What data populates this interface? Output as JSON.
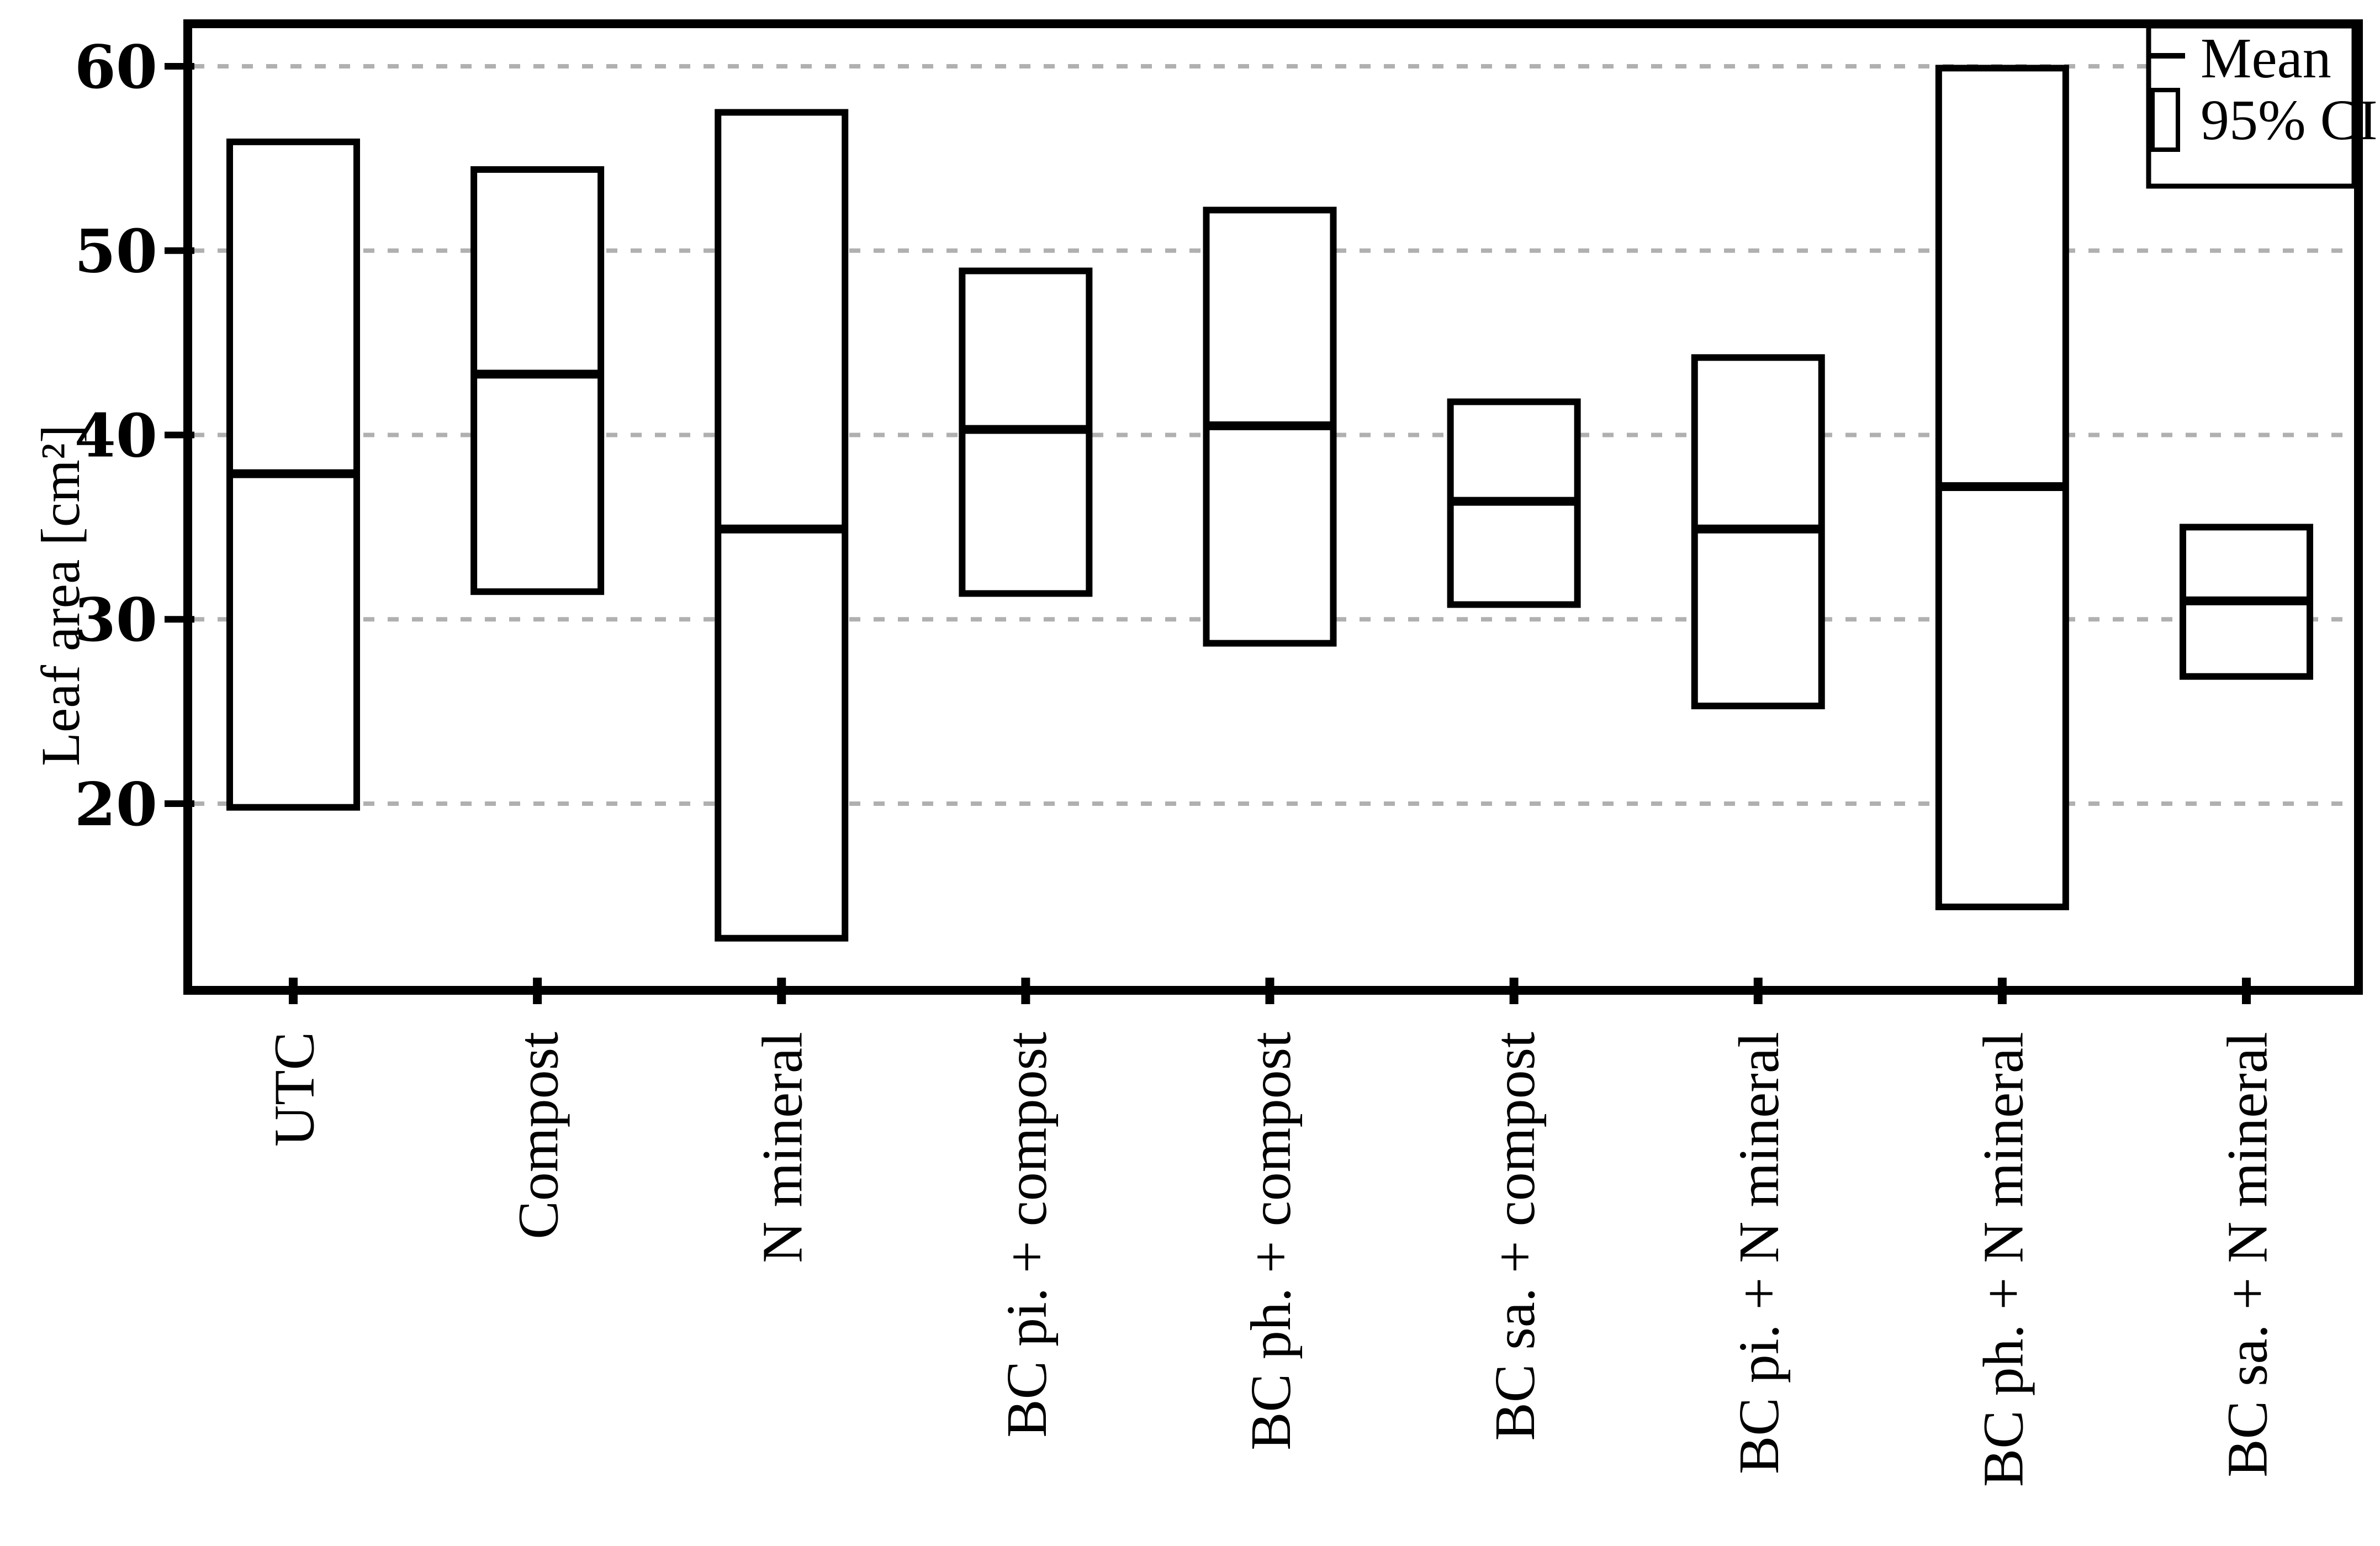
{
  "chart_data": {
    "type": "bar",
    "variant": "mean-with-95ci-boxes",
    "title": "",
    "xlabel": "",
    "ylabel": "Leaf area [cm²]",
    "yticks": [
      60,
      50,
      40,
      30,
      20
    ],
    "ylim": [
      9.8,
      62.6
    ],
    "grid": "horizontal dashed gray lines at each y tick",
    "categories": [
      "UTC",
      "Compost",
      "N mineral",
      "BC pi. + compost",
      "BC ph. + compost",
      "BC sa. + compost",
      "BC pi. + N mineral",
      "BC ph. + N mineral",
      "BC sa. + N mineral"
    ],
    "series": [
      {
        "name": "Mean",
        "values": [
          37.9,
          43.3,
          34.9,
          40.3,
          40.5,
          36.4,
          34.9,
          37.2,
          31.0
        ]
      },
      {
        "name": "CI lower",
        "values": [
          19.8,
          31.5,
          12.7,
          31.4,
          28.7,
          30.8,
          25.3,
          14.4,
          26.9
        ]
      },
      {
        "name": "CI upper",
        "values": [
          55.9,
          54.4,
          57.5,
          48.9,
          52.2,
          41.8,
          44.2,
          59.9,
          35.0
        ]
      }
    ],
    "legend": {
      "position": "top-right",
      "items": [
        {
          "label": "Mean",
          "marker": "line"
        },
        {
          "label": "95% CI",
          "marker": "box"
        }
      ]
    },
    "colors": {
      "background": "#ffffff",
      "box_fill": "#ffffff",
      "box_stroke": "#000000",
      "mean_line": "#000000",
      "axis": "#000000",
      "gridline": "#b0b0b0",
      "text": "#000000"
    }
  }
}
